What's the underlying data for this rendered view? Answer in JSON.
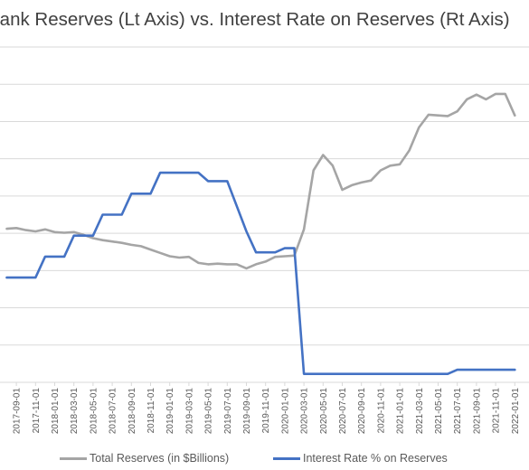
{
  "chart_data": {
    "type": "line",
    "title": "Bank Reserves (Lt Axis) vs. Interest Rate on Reserves (Rt Axis)",
    "xlabel": "",
    "ylabel": "",
    "grid": true,
    "legend_position": "bottom",
    "x_ticks": [
      "2017-09-01",
      "2017-11-01",
      "2018-01-01",
      "2018-03-01",
      "2018-05-01",
      "2018-07-01",
      "2018-09-01",
      "2018-11-01",
      "2019-01-01",
      "2019-03-01",
      "2019-05-01",
      "2019-07-01",
      "2019-09-01",
      "2019-11-01",
      "2020-01-01",
      "2020-03-01",
      "2020-05-01",
      "2020-07-01",
      "2020-09-01",
      "2020-11-01",
      "2021-01-01",
      "2021-03-01",
      "2021-05-01",
      "2021-07-01",
      "2021-09-01",
      "2021-11-01",
      "2022-01-01"
    ],
    "x": [
      "2017-08",
      "2017-09",
      "2017-10",
      "2017-11",
      "2017-12",
      "2018-01",
      "2018-02",
      "2018-03",
      "2018-04",
      "2018-05",
      "2018-06",
      "2018-07",
      "2018-08",
      "2018-09",
      "2018-10",
      "2018-11",
      "2018-12",
      "2019-01",
      "2019-02",
      "2019-03",
      "2019-04",
      "2019-05",
      "2019-06",
      "2019-07",
      "2019-08",
      "2019-09",
      "2019-10",
      "2019-11",
      "2019-12",
      "2020-01",
      "2020-02",
      "2020-03",
      "2020-04",
      "2020-05",
      "2020-06",
      "2020-07",
      "2020-08",
      "2020-09",
      "2020-10",
      "2020-11",
      "2020-12",
      "2021-01",
      "2021-02",
      "2021-03",
      "2021-04",
      "2021-05",
      "2021-06",
      "2021-07",
      "2021-08",
      "2021-09",
      "2021-10",
      "2021-11",
      "2021-12",
      "2022-01"
    ],
    "series": [
      {
        "name": "Total Reserves (in $Billions)",
        "color": "#a5a5a5",
        "axis": "left",
        "values": [
          2290,
          2300,
          2270,
          2250,
          2280,
          2240,
          2230,
          2240,
          2200,
          2150,
          2120,
          2100,
          2080,
          2050,
          2030,
          1980,
          1930,
          1880,
          1860,
          1870,
          1780,
          1760,
          1770,
          1760,
          1760,
          1700,
          1760,
          1800,
          1870,
          1880,
          1890,
          2280,
          3160,
          3390,
          3230,
          2870,
          2940,
          2980,
          3010,
          3160,
          3230,
          3250,
          3460,
          3800,
          3990,
          3980,
          3970,
          4040,
          4220,
          4290,
          4220,
          4300,
          4300,
          3980
        ]
      },
      {
        "name": "Interest Rate % on Reserves",
        "color": "#4472c4",
        "axis": "right",
        "values": [
          1.25,
          1.25,
          1.25,
          1.25,
          1.5,
          1.5,
          1.5,
          1.75,
          1.75,
          1.75,
          2.0,
          2.0,
          2.0,
          2.25,
          2.25,
          2.25,
          2.5,
          2.5,
          2.5,
          2.5,
          2.5,
          2.4,
          2.4,
          2.4,
          2.1,
          1.8,
          1.55,
          1.55,
          1.55,
          1.6,
          1.6,
          0.1,
          0.1,
          0.1,
          0.1,
          0.1,
          0.1,
          0.1,
          0.1,
          0.1,
          0.1,
          0.1,
          0.1,
          0.1,
          0.1,
          0.1,
          0.1,
          0.15,
          0.15,
          0.15,
          0.15,
          0.15,
          0.15,
          0.15
        ]
      }
    ],
    "left_axis_range": [
      0,
      5000
    ],
    "right_axis_range": [
      0,
      4
    ]
  }
}
